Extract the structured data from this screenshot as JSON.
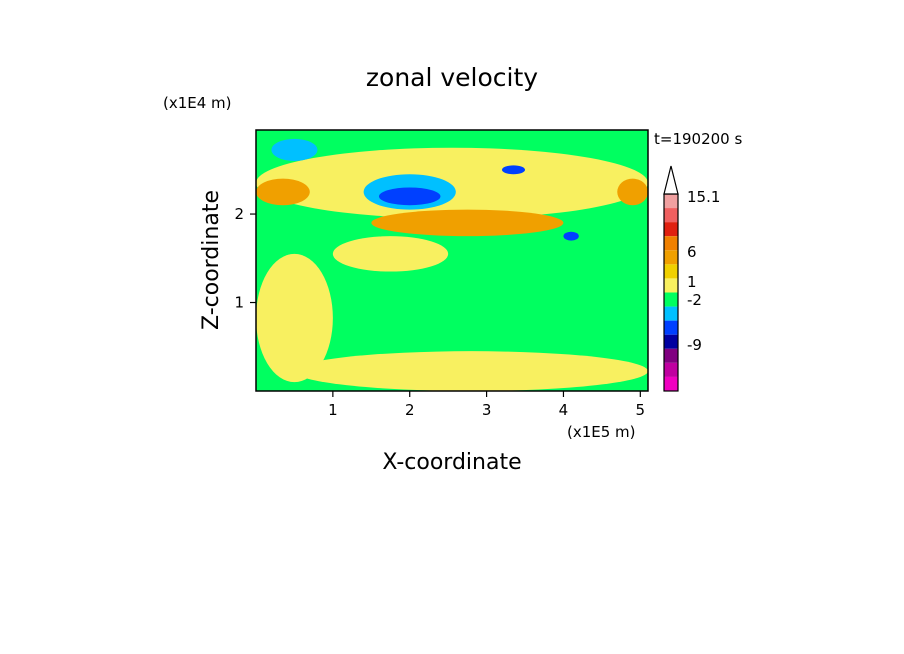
{
  "chart_data": {
    "type": "heatmap",
    "title": "zonal velocity",
    "xlabel": "X-coordinate",
    "ylabel": "Z-coordinate",
    "x_unit": "(x1E5 m)",
    "y_unit": "(x1E4 m)",
    "time_label": "t=190200 s",
    "xlim": [
      0,
      5.1
    ],
    "ylim": [
      0,
      2.95
    ],
    "x_ticks": [
      "1",
      "2",
      "3",
      "4",
      "5"
    ],
    "y_ticks": [
      "1",
      "2"
    ],
    "colorbar": {
      "labels": [
        "15.1",
        "6",
        "1",
        "-2",
        "-9"
      ],
      "extend": "max",
      "bins": [
        {
          "color": "#f0a0a0"
        },
        {
          "color": "#f06060"
        },
        {
          "color": "#e02010"
        },
        {
          "color": "#f08000"
        },
        {
          "color": "#f0a000"
        },
        {
          "color": "#f0d000"
        },
        {
          "color": "#f8f060"
        },
        {
          "color": "#00ff60"
        },
        {
          "color": "#00c0ff"
        },
        {
          "color": "#0040ff"
        },
        {
          "color": "#0000a0"
        },
        {
          "color": "#800080"
        },
        {
          "color": "#c000a0"
        },
        {
          "color": "#f000c0"
        }
      ]
    },
    "regions": [
      {
        "level": "near-zero",
        "color": "#00ff60",
        "x": [
          0,
          5.1
        ],
        "z": [
          0,
          2.95
        ]
      },
      {
        "level": "weak positive",
        "color": "#f8f060",
        "x": [
          0,
          1.0
        ],
        "z": [
          0.1,
          1.55
        ]
      },
      {
        "level": "weak positive",
        "color": "#f8f060",
        "x": [
          1.0,
          2.5
        ],
        "z": [
          1.35,
          1.75
        ]
      },
      {
        "level": "weak positive",
        "color": "#f8f060",
        "x": [
          0.5,
          5.1
        ],
        "z": [
          0.0,
          0.45
        ]
      },
      {
        "level": "weak positive",
        "color": "#f8f060",
        "x": [
          0,
          5.1
        ],
        "z": [
          1.95,
          2.75
        ]
      },
      {
        "level": "positive",
        "color": "#f0a000",
        "x": [
          1.5,
          4.0
        ],
        "z": [
          1.75,
          2.05
        ]
      },
      {
        "level": "positive",
        "color": "#f0a000",
        "x": [
          0,
          0.7
        ],
        "z": [
          2.1,
          2.4
        ]
      },
      {
        "level": "positive",
        "color": "#f0a000",
        "x": [
          4.7,
          5.1
        ],
        "z": [
          2.1,
          2.4
        ]
      },
      {
        "level": "negative",
        "color": "#00c0ff",
        "x": [
          1.4,
          2.6
        ],
        "z": [
          2.05,
          2.45
        ]
      },
      {
        "level": "negative",
        "color": "#00c0ff",
        "x": [
          0.2,
          0.8
        ],
        "z": [
          2.6,
          2.85
        ]
      },
      {
        "level": "strong negative",
        "color": "#0040ff",
        "x": [
          1.6,
          2.4
        ],
        "z": [
          2.1,
          2.3
        ]
      },
      {
        "level": "strong negative",
        "color": "#0040ff",
        "x": [
          3.2,
          3.5
        ],
        "z": [
          2.45,
          2.55
        ]
      },
      {
        "level": "strong negative",
        "color": "#0040ff",
        "x": [
          4.0,
          4.2
        ],
        "z": [
          1.7,
          1.8
        ]
      }
    ]
  }
}
